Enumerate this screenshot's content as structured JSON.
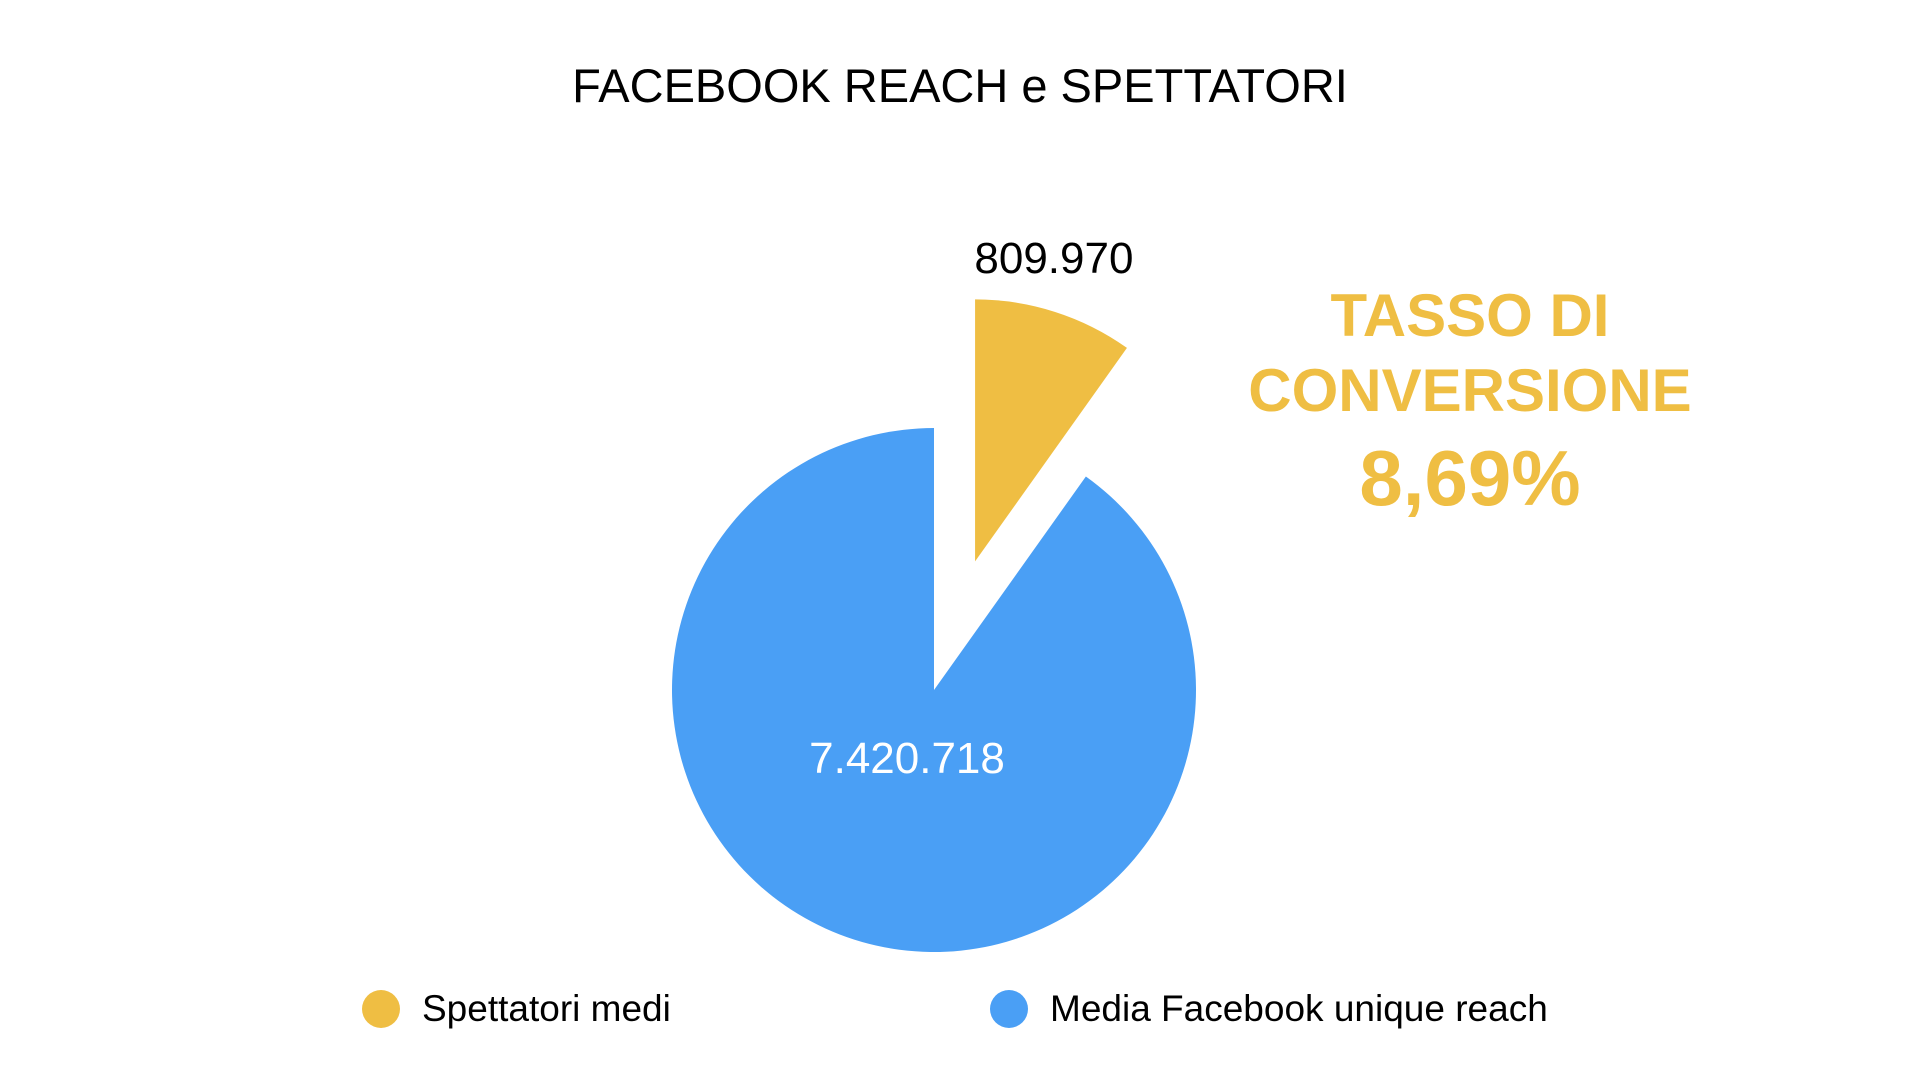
{
  "chart_data": {
    "type": "pie",
    "title": "FACEBOOK REACH e SPETTATORI",
    "slices": [
      {
        "name": "Spettatori medi",
        "value": 809970,
        "label": "809.970",
        "color": "#EFBE43",
        "exploded": true
      },
      {
        "name": "Media Facebook unique reach",
        "value": 7420718,
        "label": "7.420.718",
        "color": "#4A9FF5",
        "exploded": false
      }
    ],
    "legend_position": "bottom",
    "annotation": {
      "line1": "TASSO DI",
      "line2": "CONVERSIONE",
      "value": "8,69%",
      "color": "#EFBE43"
    }
  }
}
